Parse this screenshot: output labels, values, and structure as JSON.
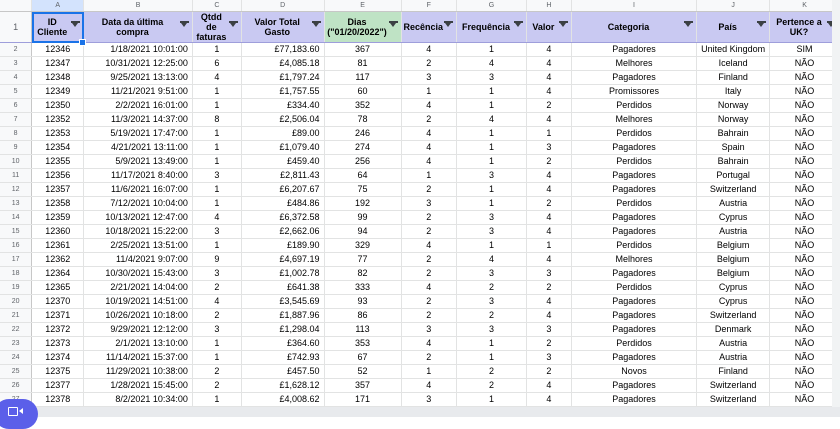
{
  "columns": [
    "A",
    "B",
    "C",
    "D",
    "E",
    "F",
    "G",
    "H",
    "I",
    "J",
    "K"
  ],
  "headers": [
    "ID Cliente",
    "Data da última compra",
    "Qtdd de faturas",
    "Valor Total Gasto",
    "Dias (\"01/20/2022\")",
    "Recência",
    "Frequência",
    "Valor",
    "Categoria",
    "País",
    "Pertence a UK?"
  ],
  "header_colors": {
    "default": "#c9c9f2",
    "highlight": "#bfe3c5"
  },
  "rows": [
    [
      "12346",
      "1/18/2021 10:01:00",
      "1",
      "£77,183.60",
      "367",
      "4",
      "1",
      "4",
      "Pagadores",
      "United Kingdom",
      "SIM"
    ],
    [
      "12347",
      "10/31/2021 12:25:00",
      "6",
      "£4,085.18",
      "81",
      "2",
      "4",
      "4",
      "Melhores",
      "Iceland",
      "NÃO"
    ],
    [
      "12348",
      "9/25/2021 13:13:00",
      "4",
      "£1,797.24",
      "117",
      "3",
      "3",
      "4",
      "Pagadores",
      "Finland",
      "NÃO"
    ],
    [
      "12349",
      "11/21/2021 9:51:00",
      "1",
      "£1,757.55",
      "60",
      "1",
      "1",
      "4",
      "Promissores",
      "Italy",
      "NÃO"
    ],
    [
      "12350",
      "2/2/2021 16:01:00",
      "1",
      "£334.40",
      "352",
      "4",
      "1",
      "2",
      "Perdidos",
      "Norway",
      "NÃO"
    ],
    [
      "12352",
      "11/3/2021 14:37:00",
      "8",
      "£2,506.04",
      "78",
      "2",
      "4",
      "4",
      "Melhores",
      "Norway",
      "NÃO"
    ],
    [
      "12353",
      "5/19/2021 17:47:00",
      "1",
      "£89.00",
      "246",
      "4",
      "1",
      "1",
      "Perdidos",
      "Bahrain",
      "NÃO"
    ],
    [
      "12354",
      "4/21/2021 13:11:00",
      "1",
      "£1,079.40",
      "274",
      "4",
      "1",
      "3",
      "Pagadores",
      "Spain",
      "NÃO"
    ],
    [
      "12355",
      "5/9/2021 13:49:00",
      "1",
      "£459.40",
      "256",
      "4",
      "1",
      "2",
      "Perdidos",
      "Bahrain",
      "NÃO"
    ],
    [
      "12356",
      "11/17/2021 8:40:00",
      "3",
      "£2,811.43",
      "64",
      "1",
      "3",
      "4",
      "Pagadores",
      "Portugal",
      "NÃO"
    ],
    [
      "12357",
      "11/6/2021 16:07:00",
      "1",
      "£6,207.67",
      "75",
      "2",
      "1",
      "4",
      "Pagadores",
      "Switzerland",
      "NÃO"
    ],
    [
      "12358",
      "7/12/2021 10:04:00",
      "1",
      "£484.86",
      "192",
      "3",
      "1",
      "2",
      "Perdidos",
      "Austria",
      "NÃO"
    ],
    [
      "12359",
      "10/13/2021 12:47:00",
      "4",
      "£6,372.58",
      "99",
      "2",
      "3",
      "4",
      "Pagadores",
      "Cyprus",
      "NÃO"
    ],
    [
      "12360",
      "10/18/2021 15:22:00",
      "3",
      "£2,662.06",
      "94",
      "2",
      "3",
      "4",
      "Pagadores",
      "Austria",
      "NÃO"
    ],
    [
      "12361",
      "2/25/2021 13:51:00",
      "1",
      "£189.90",
      "329",
      "4",
      "1",
      "1",
      "Perdidos",
      "Belgium",
      "NÃO"
    ],
    [
      "12362",
      "11/4/2021 9:07:00",
      "9",
      "£4,697.19",
      "77",
      "2",
      "4",
      "4",
      "Melhores",
      "Belgium",
      "NÃO"
    ],
    [
      "12364",
      "10/30/2021 15:43:00",
      "3",
      "£1,002.78",
      "82",
      "2",
      "3",
      "3",
      "Pagadores",
      "Belgium",
      "NÃO"
    ],
    [
      "12365",
      "2/21/2021 14:04:00",
      "2",
      "£641.38",
      "333",
      "4",
      "2",
      "2",
      "Perdidos",
      "Cyprus",
      "NÃO"
    ],
    [
      "12370",
      "10/19/2021 14:51:00",
      "4",
      "£3,545.69",
      "93",
      "2",
      "3",
      "4",
      "Pagadores",
      "Cyprus",
      "NÃO"
    ],
    [
      "12371",
      "10/26/2021 10:18:00",
      "2",
      "£1,887.96",
      "86",
      "2",
      "2",
      "4",
      "Pagadores",
      "Switzerland",
      "NÃO"
    ],
    [
      "12372",
      "9/29/2021 12:12:00",
      "3",
      "£1,298.04",
      "113",
      "3",
      "3",
      "3",
      "Pagadores",
      "Denmark",
      "NÃO"
    ],
    [
      "12373",
      "2/1/2021 13:10:00",
      "1",
      "£364.60",
      "353",
      "4",
      "1",
      "2",
      "Perdidos",
      "Austria",
      "NÃO"
    ],
    [
      "12374",
      "11/14/2021 15:37:00",
      "1",
      "£742.93",
      "67",
      "2",
      "1",
      "3",
      "Pagadores",
      "Austria",
      "NÃO"
    ],
    [
      "12375",
      "11/29/2021 10:38:00",
      "2",
      "£457.50",
      "52",
      "1",
      "2",
      "2",
      "Novos",
      "Finland",
      "NÃO"
    ],
    [
      "12377",
      "1/28/2021 15:45:00",
      "2",
      "£1,628.12",
      "357",
      "4",
      "2",
      "4",
      "Pagadores",
      "Switzerland",
      "NÃO"
    ],
    [
      "12378",
      "8/2/2021 10:34:00",
      "1",
      "£4,008.62",
      "171",
      "3",
      "1",
      "4",
      "Pagadores",
      "Switzerland",
      "NÃO"
    ]
  ]
}
